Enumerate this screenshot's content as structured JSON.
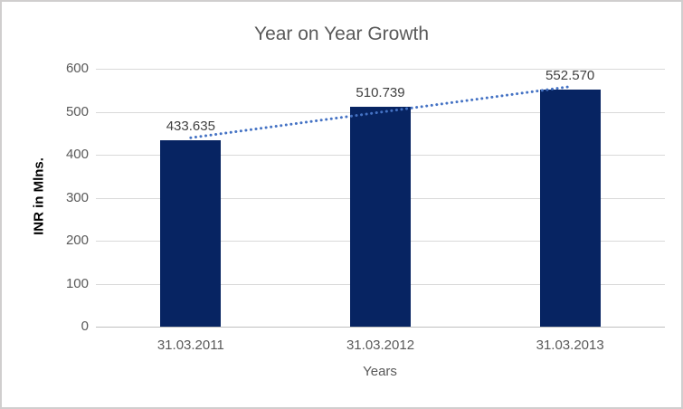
{
  "chart_data": {
    "type": "bar",
    "title": "Year on Year Growth",
    "xlabel": "Years",
    "ylabel": "INR in Mlns.",
    "categories": [
      "31.03.2011",
      "31.03.2012",
      "31.03.2013"
    ],
    "values": [
      433.635,
      510.739,
      552.57
    ],
    "data_labels": [
      "433.635",
      "510.739",
      "552.570"
    ],
    "ylim": [
      0,
      600
    ],
    "yticks": [
      0,
      100,
      200,
      300,
      400,
      500,
      600
    ],
    "grid": true,
    "legend": "none",
    "bar_color": "#072462",
    "trendline": {
      "type": "linear",
      "style": "dotted",
      "color": "#4472C4"
    },
    "colors": {
      "background": "#FFFFFF",
      "border": "#D0CECE",
      "gridline": "#D9D9D9",
      "axis_line": "#BFBFBF",
      "title_text": "#595959",
      "tick_text": "#595959",
      "data_label_text": "#404040",
      "axis_title_text": "#595959",
      "y_axis_title_text": "#000000"
    }
  }
}
